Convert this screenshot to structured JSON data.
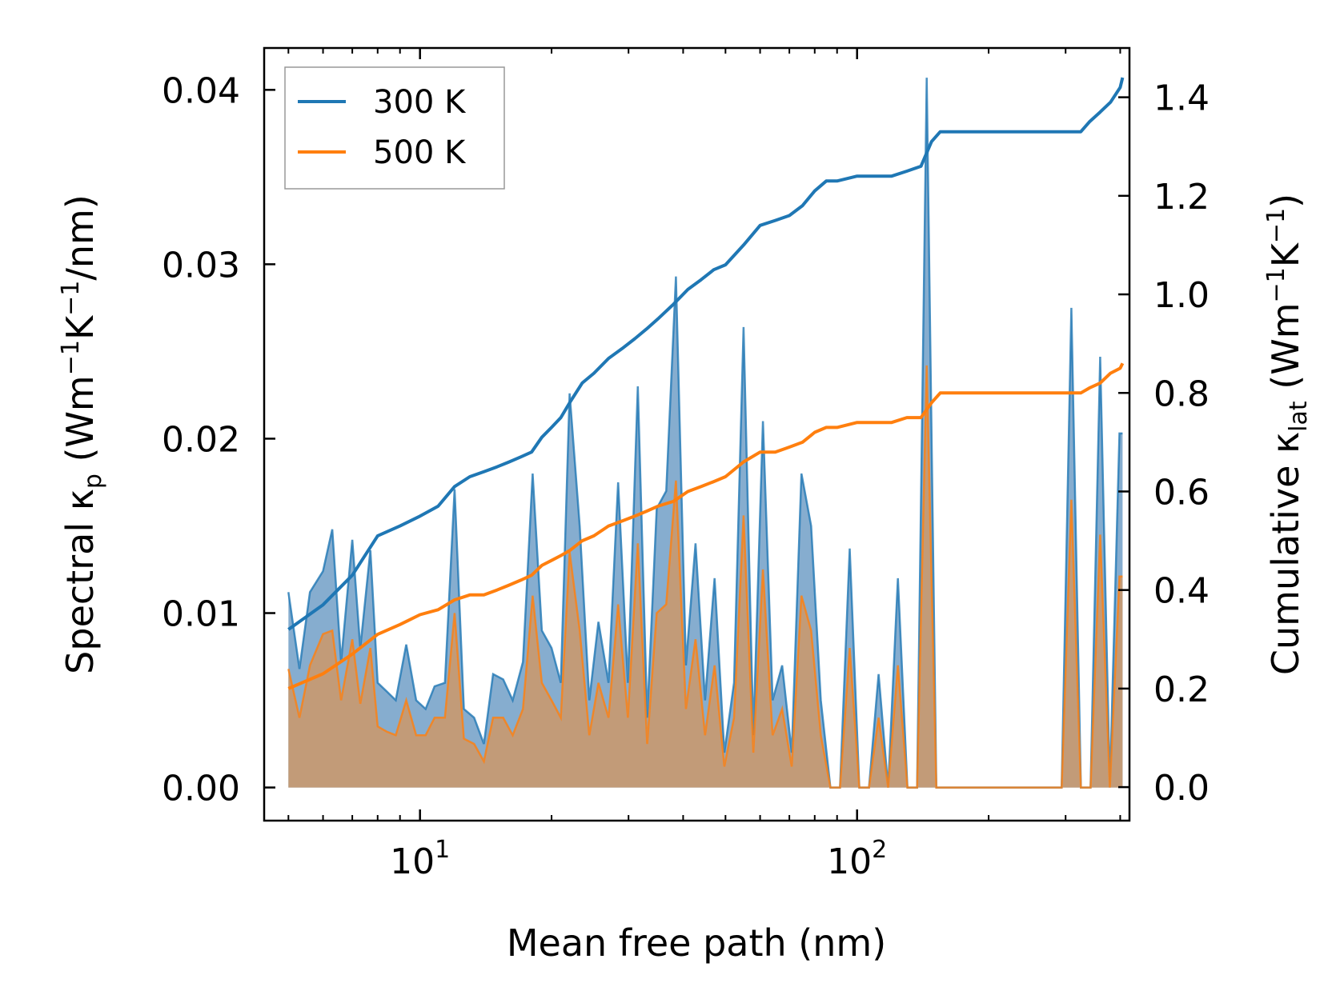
{
  "chart_data": {
    "type": "area+line",
    "xlabel": "Mean free path (nm)",
    "ylabel_left": {
      "prefix": "Spectral κ",
      "sub": "p",
      "unit_open": " (Wm",
      "sup1": "−1",
      "mid": "K",
      "sup2": "−1",
      "tail": "/nm)"
    },
    "ylabel_right": {
      "prefix": "Cumulative κ",
      "sub": "lat",
      "unit_open": " (Wm",
      "sup1": "−1",
      "mid": "K",
      "sup2": "−1",
      "tail": ")"
    },
    "xscale": "log",
    "xlim": [
      4.4,
      420
    ],
    "ylim_left": [
      -0.0019,
      0.0424
    ],
    "ylim_right": [
      -0.068,
      1.5
    ],
    "x_ticks": [
      {
        "value": 10,
        "base": "10",
        "exp": "1"
      },
      {
        "value": 100,
        "base": "10",
        "exp": "2"
      }
    ],
    "y_ticks_left": [
      "0.00",
      "0.01",
      "0.02",
      "0.03",
      "0.04"
    ],
    "y_ticks_right": [
      "0.0",
      "0.2",
      "0.4",
      "0.6",
      "0.8",
      "1.0",
      "1.2",
      "1.4"
    ],
    "legend": {
      "position": "upper-left",
      "entries": [
        "300 K",
        "500 K"
      ]
    },
    "colors": {
      "300 K": "#1f77b4",
      "500 K": "#ff7f0e",
      "area_300": "#7fa9cc",
      "area_500": "#c59a73"
    },
    "spectral": [
      {
        "name": "300 K",
        "x": [
          5.0,
          5.3,
          5.6,
          6.0,
          6.3,
          6.6,
          7.0,
          7.3,
          7.7,
          8.0,
          8.4,
          8.8,
          9.3,
          9.8,
          10.3,
          10.8,
          11.4,
          12.0,
          12.6,
          13.3,
          14.0,
          14.7,
          15.5,
          16.3,
          17.2,
          18.1,
          19.0,
          20.0,
          21.0,
          22.0,
          23.2,
          24.4,
          25.6,
          27.0,
          28.4,
          29.9,
          31.5,
          33.1,
          34.8,
          36.6,
          38.5,
          40.6,
          42.7,
          44.9,
          47.2,
          49.7,
          52.3,
          55.0,
          57.9,
          60.9,
          64.1,
          67.4,
          70.9,
          74.6,
          78.5,
          82.6,
          86.9,
          91.4,
          96.2,
          101.2,
          106.5,
          112.0,
          117.8,
          124.0,
          130.4,
          137.2,
          144.3,
          151.8,
          159.8,
          168.1,
          176.8,
          186.0,
          195.7,
          205.9,
          216.7,
          228.0,
          239.8,
          252.3,
          265.5,
          279.3,
          293.8,
          309.2,
          325.2,
          342.2,
          360.0,
          378.8,
          398.5,
          405.0
        ],
        "y": [
          0.0112,
          0.0068,
          0.0112,
          0.0124,
          0.0148,
          0.0072,
          0.0142,
          0.008,
          0.0136,
          0.006,
          0.0055,
          0.005,
          0.0082,
          0.005,
          0.0045,
          0.0058,
          0.006,
          0.0171,
          0.0045,
          0.004,
          0.0025,
          0.0065,
          0.0062,
          0.005,
          0.0072,
          0.018,
          0.009,
          0.008,
          0.006,
          0.0226,
          0.015,
          0.005,
          0.0095,
          0.006,
          0.0175,
          0.006,
          0.023,
          0.004,
          0.016,
          0.017,
          0.0293,
          0.007,
          0.014,
          0.005,
          0.012,
          0.002,
          0.006,
          0.0264,
          0.003,
          0.021,
          0.005,
          0.007,
          0.002,
          0.018,
          0.015,
          0.005,
          0.0,
          0.0,
          0.0137,
          0.0,
          0.0,
          0.0065,
          0.0,
          0.012,
          0.0,
          0.0,
          0.0407,
          0.0,
          0.0,
          0.0,
          0.0,
          0.0,
          0.0,
          0.0,
          0.0,
          0.0,
          0.0,
          0.0,
          0.0,
          0.0,
          0.0,
          0.0275,
          0.0,
          0.0,
          0.0247,
          0.0,
          0.0203,
          0.0203
        ]
      },
      {
        "name": "500 K",
        "x": [
          5.0,
          5.3,
          5.6,
          6.0,
          6.3,
          6.6,
          7.0,
          7.3,
          7.7,
          8.0,
          8.4,
          8.8,
          9.3,
          9.8,
          10.3,
          10.8,
          11.4,
          12.0,
          12.6,
          13.3,
          14.0,
          14.7,
          15.5,
          16.3,
          17.2,
          18.1,
          19.0,
          20.0,
          21.0,
          22.0,
          23.2,
          24.4,
          25.6,
          27.0,
          28.4,
          29.9,
          31.5,
          33.1,
          34.8,
          36.6,
          38.5,
          40.6,
          42.7,
          44.9,
          47.2,
          49.7,
          52.3,
          55.0,
          57.9,
          60.9,
          64.1,
          67.4,
          70.9,
          74.6,
          78.5,
          82.6,
          86.9,
          91.4,
          96.2,
          101.2,
          106.5,
          112.0,
          117.8,
          124.0,
          130.4,
          137.2,
          144.3,
          151.8,
          159.8,
          168.1,
          176.8,
          186.0,
          195.7,
          205.9,
          216.7,
          228.0,
          239.8,
          252.3,
          265.5,
          279.3,
          293.8,
          309.2,
          325.2,
          342.2,
          360.0,
          378.8,
          398.5,
          405.0
        ],
        "y": [
          0.0068,
          0.004,
          0.007,
          0.0088,
          0.009,
          0.005,
          0.0085,
          0.0048,
          0.008,
          0.0035,
          0.0032,
          0.003,
          0.005,
          0.003,
          0.003,
          0.004,
          0.004,
          0.01,
          0.0028,
          0.0025,
          0.0015,
          0.004,
          0.004,
          0.003,
          0.0045,
          0.011,
          0.006,
          0.005,
          0.004,
          0.0135,
          0.009,
          0.003,
          0.006,
          0.004,
          0.0105,
          0.004,
          0.014,
          0.0025,
          0.01,
          0.0105,
          0.0176,
          0.0045,
          0.0085,
          0.003,
          0.007,
          0.0012,
          0.004,
          0.0156,
          0.002,
          0.0125,
          0.003,
          0.0045,
          0.0012,
          0.011,
          0.009,
          0.003,
          0.0,
          0.0,
          0.008,
          0.0,
          0.0,
          0.004,
          0.0,
          0.007,
          0.0,
          0.0,
          0.0242,
          0.0,
          0.0,
          0.0,
          0.0,
          0.0,
          0.0,
          0.0,
          0.0,
          0.0,
          0.0,
          0.0,
          0.0,
          0.0,
          0.0,
          0.0165,
          0.0,
          0.0,
          0.0145,
          0.0,
          0.0121,
          0.0121
        ]
      }
    ],
    "cumulative": [
      {
        "name": "300 K",
        "x": [
          5.0,
          6.0,
          7.0,
          8.0,
          9.0,
          10.0,
          11.0,
          12.0,
          13.0,
          14.0,
          15.0,
          16.0,
          17.0,
          18.0,
          19.0,
          20.0,
          21.0,
          22.0,
          23.5,
          25.0,
          27.0,
          29.0,
          31.0,
          33.0,
          35.0,
          38.0,
          41.0,
          44.0,
          47.0,
          50.0,
          55.0,
          60.0,
          65.0,
          70.0,
          75.0,
          80.0,
          85.0,
          90.0,
          100.0,
          110.0,
          120.0,
          130.0,
          140.0,
          148.0,
          155.0,
          200.0,
          250.0,
          300.0,
          325.0,
          340.0,
          360.0,
          380.0,
          400.0,
          405.0
        ],
        "y": [
          0.32,
          0.37,
          0.43,
          0.51,
          0.53,
          0.55,
          0.57,
          0.61,
          0.63,
          0.64,
          0.65,
          0.66,
          0.67,
          0.68,
          0.71,
          0.73,
          0.75,
          0.78,
          0.82,
          0.84,
          0.87,
          0.89,
          0.91,
          0.93,
          0.95,
          0.98,
          1.01,
          1.03,
          1.05,
          1.06,
          1.1,
          1.14,
          1.15,
          1.16,
          1.18,
          1.21,
          1.23,
          1.23,
          1.24,
          1.24,
          1.24,
          1.25,
          1.26,
          1.31,
          1.33,
          1.33,
          1.33,
          1.33,
          1.33,
          1.35,
          1.37,
          1.39,
          1.42,
          1.44
        ]
      },
      {
        "name": "500 K",
        "x": [
          5.0,
          6.0,
          7.0,
          8.0,
          9.0,
          10.0,
          11.0,
          12.0,
          13.0,
          14.0,
          15.0,
          16.0,
          17.0,
          18.0,
          19.0,
          20.0,
          21.0,
          22.0,
          23.5,
          25.0,
          27.0,
          29.0,
          31.0,
          33.0,
          35.0,
          38.0,
          41.0,
          44.0,
          47.0,
          50.0,
          55.0,
          60.0,
          65.0,
          70.0,
          75.0,
          80.0,
          85.0,
          90.0,
          100.0,
          110.0,
          120.0,
          130.0,
          140.0,
          148.0,
          155.0,
          200.0,
          250.0,
          300.0,
          325.0,
          340.0,
          360.0,
          380.0,
          400.0,
          405.0
        ],
        "y": [
          0.2,
          0.23,
          0.27,
          0.31,
          0.33,
          0.35,
          0.36,
          0.38,
          0.39,
          0.39,
          0.4,
          0.41,
          0.42,
          0.43,
          0.45,
          0.46,
          0.47,
          0.48,
          0.5,
          0.51,
          0.53,
          0.54,
          0.55,
          0.56,
          0.57,
          0.58,
          0.6,
          0.61,
          0.62,
          0.63,
          0.66,
          0.68,
          0.68,
          0.69,
          0.7,
          0.72,
          0.73,
          0.73,
          0.74,
          0.74,
          0.74,
          0.75,
          0.75,
          0.78,
          0.8,
          0.8,
          0.8,
          0.8,
          0.8,
          0.81,
          0.82,
          0.84,
          0.85,
          0.86
        ]
      }
    ]
  }
}
